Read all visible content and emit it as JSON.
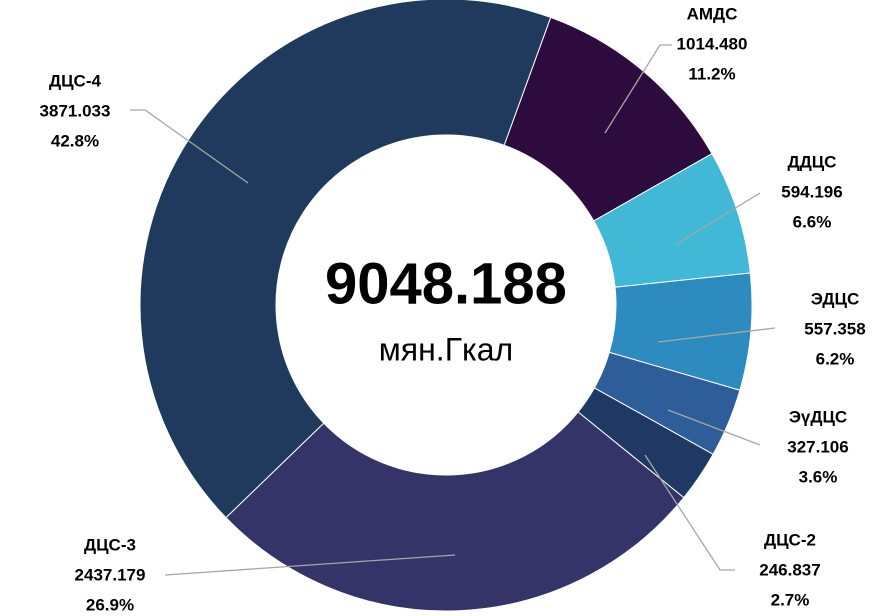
{
  "chart_data": {
    "type": "pie",
    "categories": [
      "АМДС",
      "ДДЦС",
      "ЭДЦС",
      "ЭүДЦС",
      "ДЦС-2",
      "ДЦС-3",
      "ДЦС-4"
    ],
    "values": [
      1014.48,
      594.196,
      557.358,
      327.106,
      246.837,
      2437.179,
      3871.033
    ],
    "value_labels": [
      "1014.480",
      "594.196",
      "557.358",
      "327.106",
      "246.837",
      "2437.179",
      "3871.033"
    ],
    "percent_labels": [
      "11.2%",
      "6.6%",
      "6.2%",
      "3.6%",
      "2.7%",
      "26.9%",
      "42.8%"
    ],
    "colors": [
      "#2d0b3e",
      "#41b8d5",
      "#2e8bc0",
      "#2e5e99",
      "#1f3864",
      "#353468",
      "#203a5e"
    ],
    "total": 9048.188,
    "unit": "мян.Гкал"
  }
}
